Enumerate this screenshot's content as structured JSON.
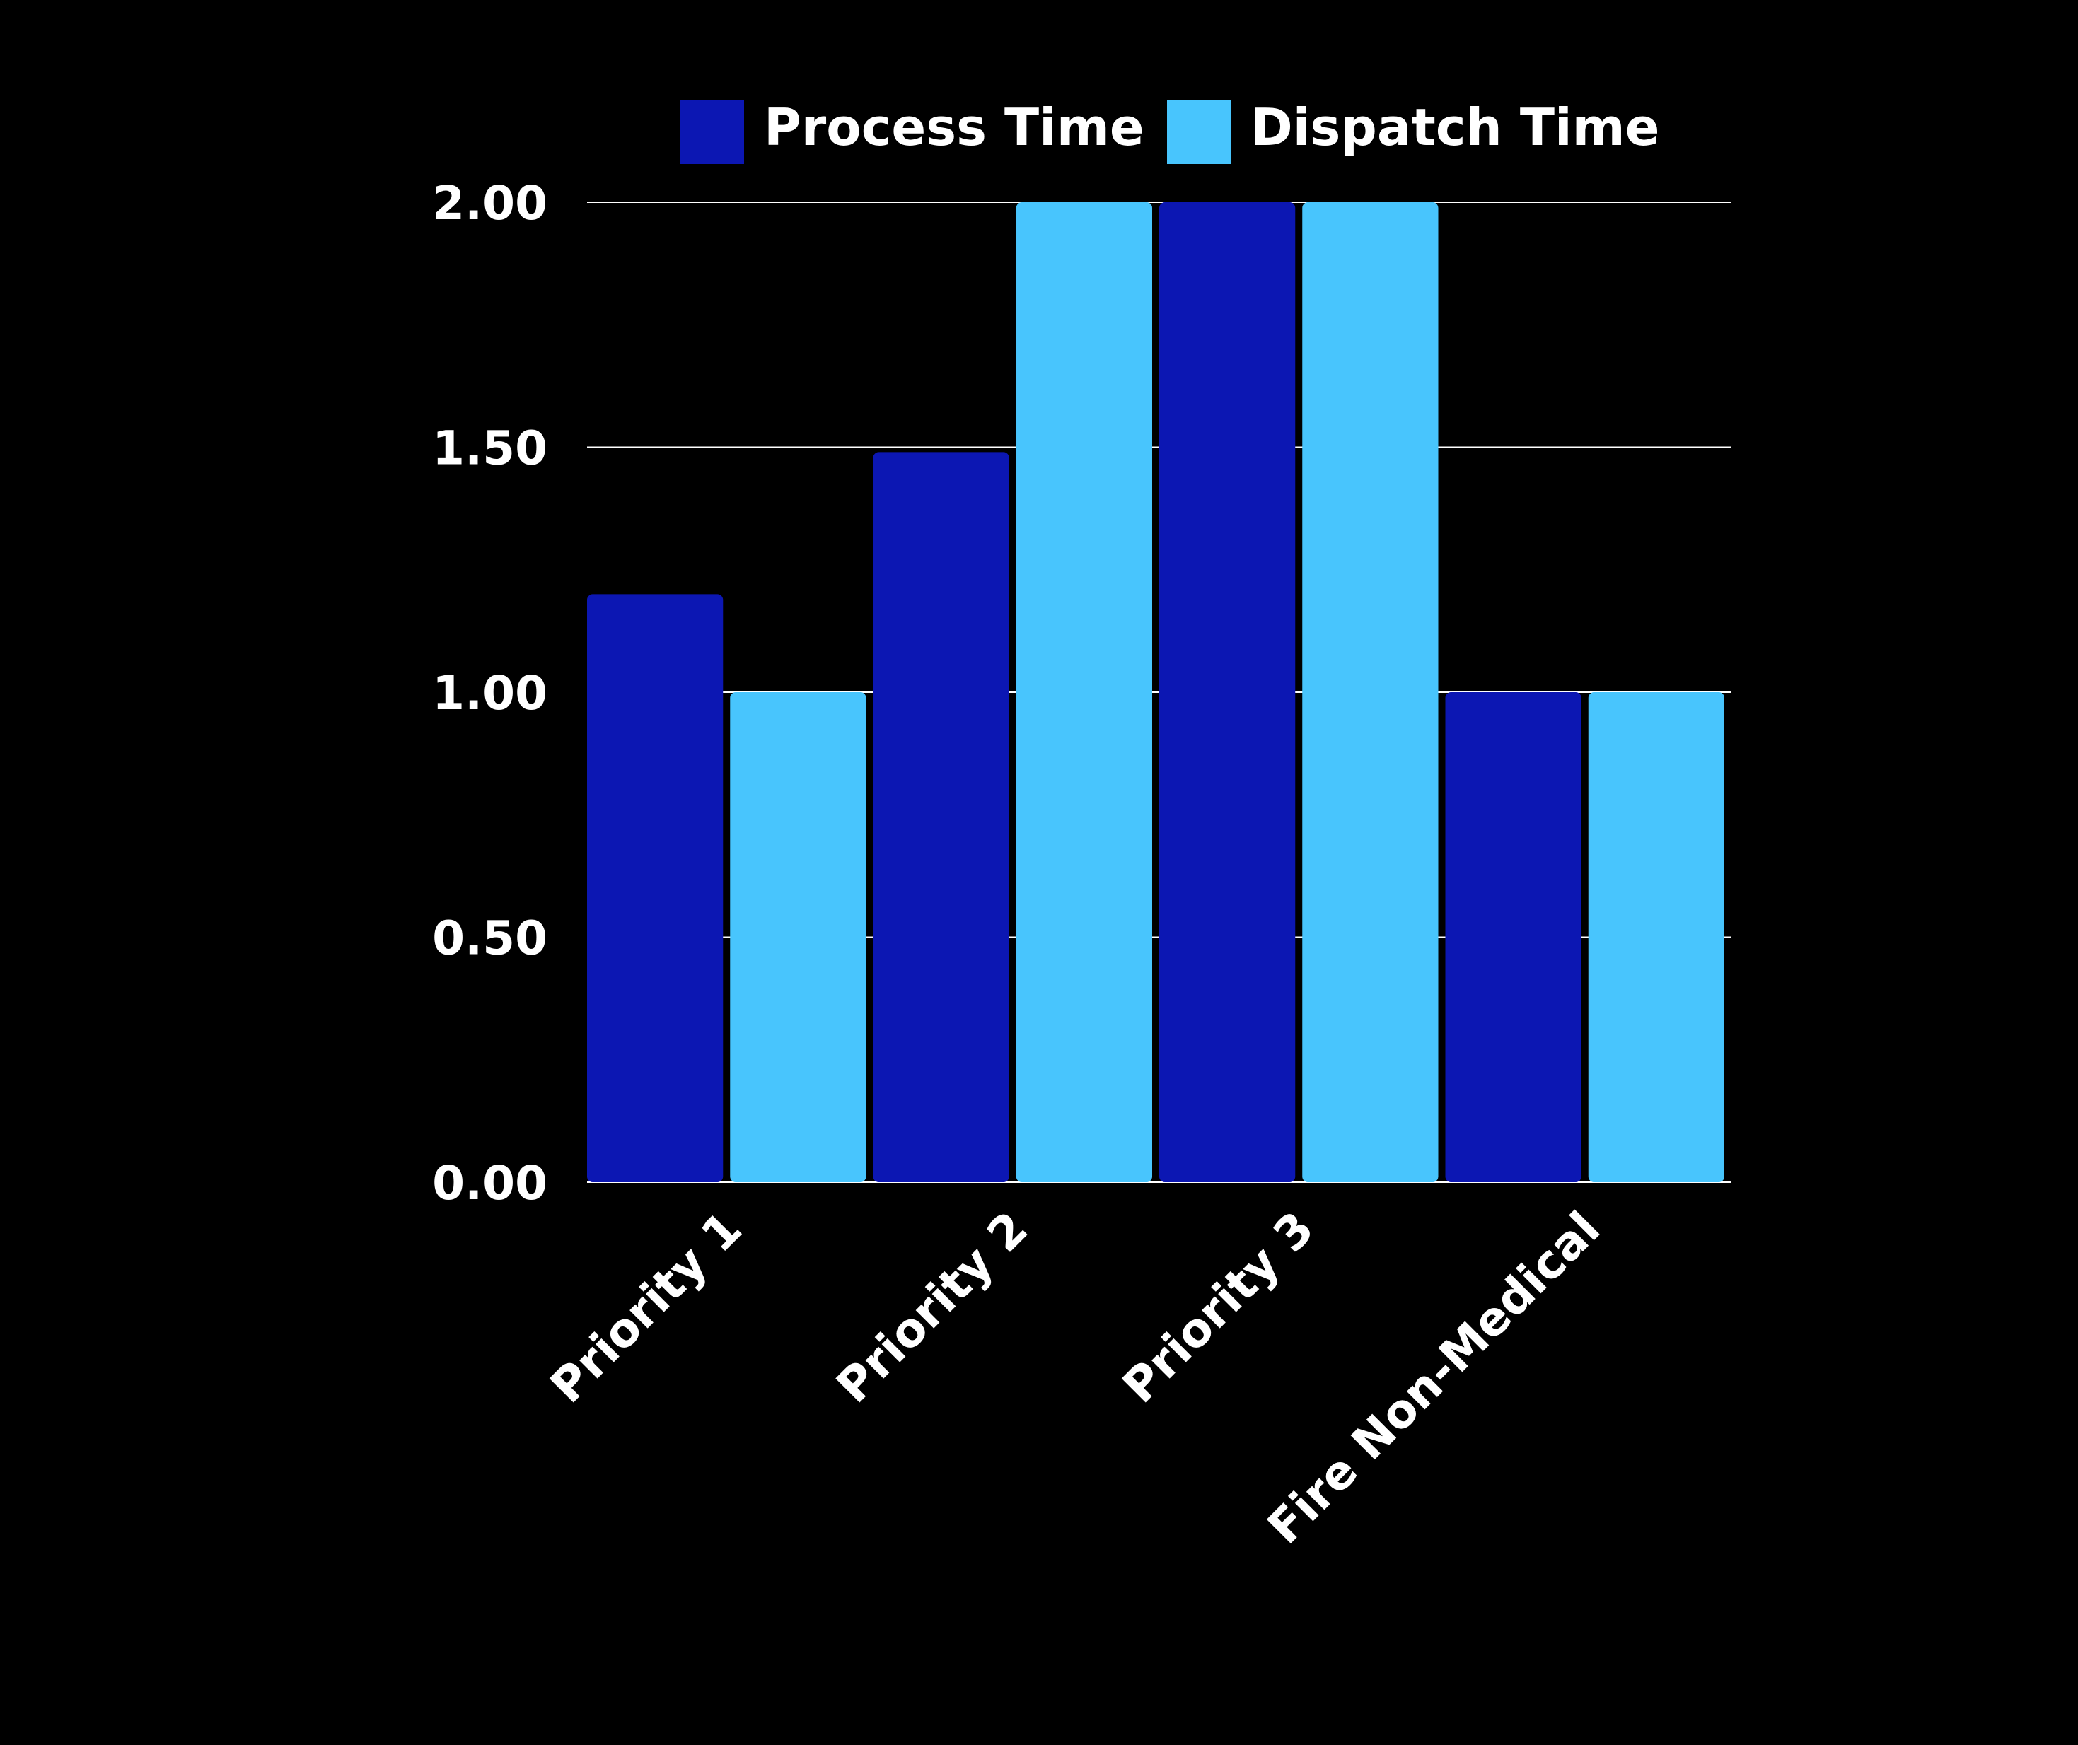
{
  "chart_data": {
    "type": "bar",
    "categories": [
      "Priority 1",
      "Priority 2",
      "Priority 3",
      "Fire Non-Medical"
    ],
    "series": [
      {
        "name": "Process Time",
        "color": "#0c17b3",
        "values": [
          1.2,
          1.49,
          2.0,
          1.0
        ]
      },
      {
        "name": "Dispatch Time",
        "color": "#48c5fd",
        "values": [
          1.0,
          2.0,
          2.0,
          1.0
        ]
      }
    ],
    "ylim": [
      0,
      2
    ],
    "yticks": [
      "0.00",
      "0.50",
      "1.00",
      "1.50",
      "2.00"
    ],
    "grid": true,
    "legend_position": "top",
    "background": "#000000",
    "text_color": "#ffffff",
    "grid_color": "#ffffff"
  }
}
